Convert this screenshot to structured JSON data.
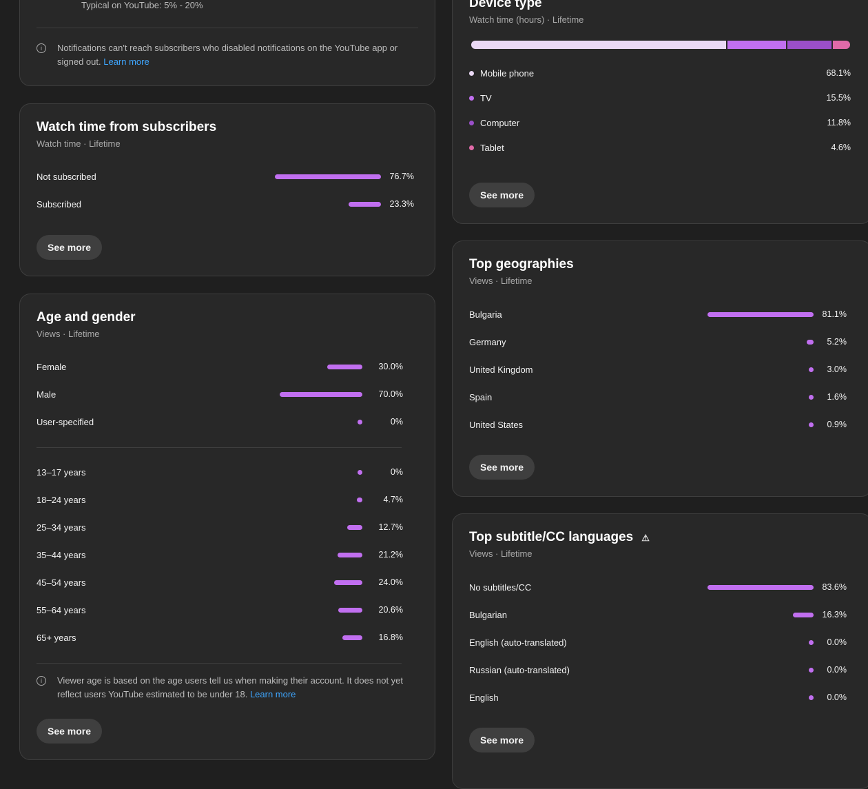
{
  "subscriber_notifications": {
    "typical": "Typical on YouTube: 5% - 20%",
    "note": "Notifications can't reach subscribers who disabled notifications on the YouTube app or signed out.",
    "learn_more": "Learn more"
  },
  "watch_time_subscribers": {
    "title": "Watch time from subscribers",
    "subtitle": "Watch time · Lifetime",
    "rows": [
      {
        "label": "Not subscribed",
        "value": 76.7,
        "display": "76.7%"
      },
      {
        "label": "Subscribed",
        "value": 23.3,
        "display": "23.3%"
      }
    ],
    "see_more": "See more"
  },
  "age_gender": {
    "title": "Age and gender",
    "subtitle": "Views · Lifetime",
    "gender": [
      {
        "label": "Female",
        "value": 30.0,
        "display": "30.0%"
      },
      {
        "label": "Male",
        "value": 70.0,
        "display": "70.0%"
      },
      {
        "label": "User-specified",
        "value": 0,
        "display": "0%"
      }
    ],
    "ages": [
      {
        "label": "13–17 years",
        "value": 0,
        "display": "0%"
      },
      {
        "label": "18–24 years",
        "value": 4.7,
        "display": "4.7%"
      },
      {
        "label": "25–34 years",
        "value": 12.7,
        "display": "12.7%"
      },
      {
        "label": "35–44 years",
        "value": 21.2,
        "display": "21.2%"
      },
      {
        "label": "45–54 years",
        "value": 24.0,
        "display": "24.0%"
      },
      {
        "label": "55–64 years",
        "value": 20.6,
        "display": "20.6%"
      },
      {
        "label": "65+ years",
        "value": 16.8,
        "display": "16.8%"
      }
    ],
    "note": "Viewer age is based on the age users tell us when making their account. It does not yet reflect users YouTube estimated to be under 18.",
    "learn_more": "Learn more",
    "see_more": "See more"
  },
  "device_type": {
    "title": "Device type",
    "subtitle": "Watch time (hours) · Lifetime",
    "rows": [
      {
        "label": "Mobile phone",
        "value": 68.1,
        "display": "68.1%",
        "color": "#ead8f5"
      },
      {
        "label": "TV",
        "value": 15.5,
        "display": "15.5%",
        "color": "#c16ff0"
      },
      {
        "label": "Computer",
        "value": 11.8,
        "display": "11.8%",
        "color": "#9a4fc9"
      },
      {
        "label": "Tablet",
        "value": 4.6,
        "display": "4.6%",
        "color": "#e06aa8"
      }
    ],
    "see_more": "See more"
  },
  "top_geographies": {
    "title": "Top geographies",
    "subtitle": "Views · Lifetime",
    "rows": [
      {
        "label": "Bulgaria",
        "value": 81.1,
        "display": "81.1%"
      },
      {
        "label": "Germany",
        "value": 5.2,
        "display": "5.2%"
      },
      {
        "label": "United Kingdom",
        "value": 3.0,
        "display": "3.0%"
      },
      {
        "label": "Spain",
        "value": 1.6,
        "display": "1.6%"
      },
      {
        "label": "United States",
        "value": 0.9,
        "display": "0.9%"
      }
    ],
    "see_more": "See more"
  },
  "subtitle_languages": {
    "title": "Top subtitle/CC languages",
    "warning_icon": "warning-icon",
    "subtitle": "Views · Lifetime",
    "rows": [
      {
        "label": "No subtitles/CC",
        "value": 83.6,
        "display": "83.6%"
      },
      {
        "label": "Bulgarian",
        "value": 16.3,
        "display": "16.3%"
      },
      {
        "label": "English (auto-translated)",
        "value": 0.0,
        "display": "0.0%"
      },
      {
        "label": "Russian (auto-translated)",
        "value": 0.0,
        "display": "0.0%"
      },
      {
        "label": "English",
        "value": 0.0,
        "display": "0.0%"
      }
    ],
    "see_more": "See more"
  },
  "colors": {
    "bar": "#c16ff0",
    "link": "#3ea6ff"
  }
}
